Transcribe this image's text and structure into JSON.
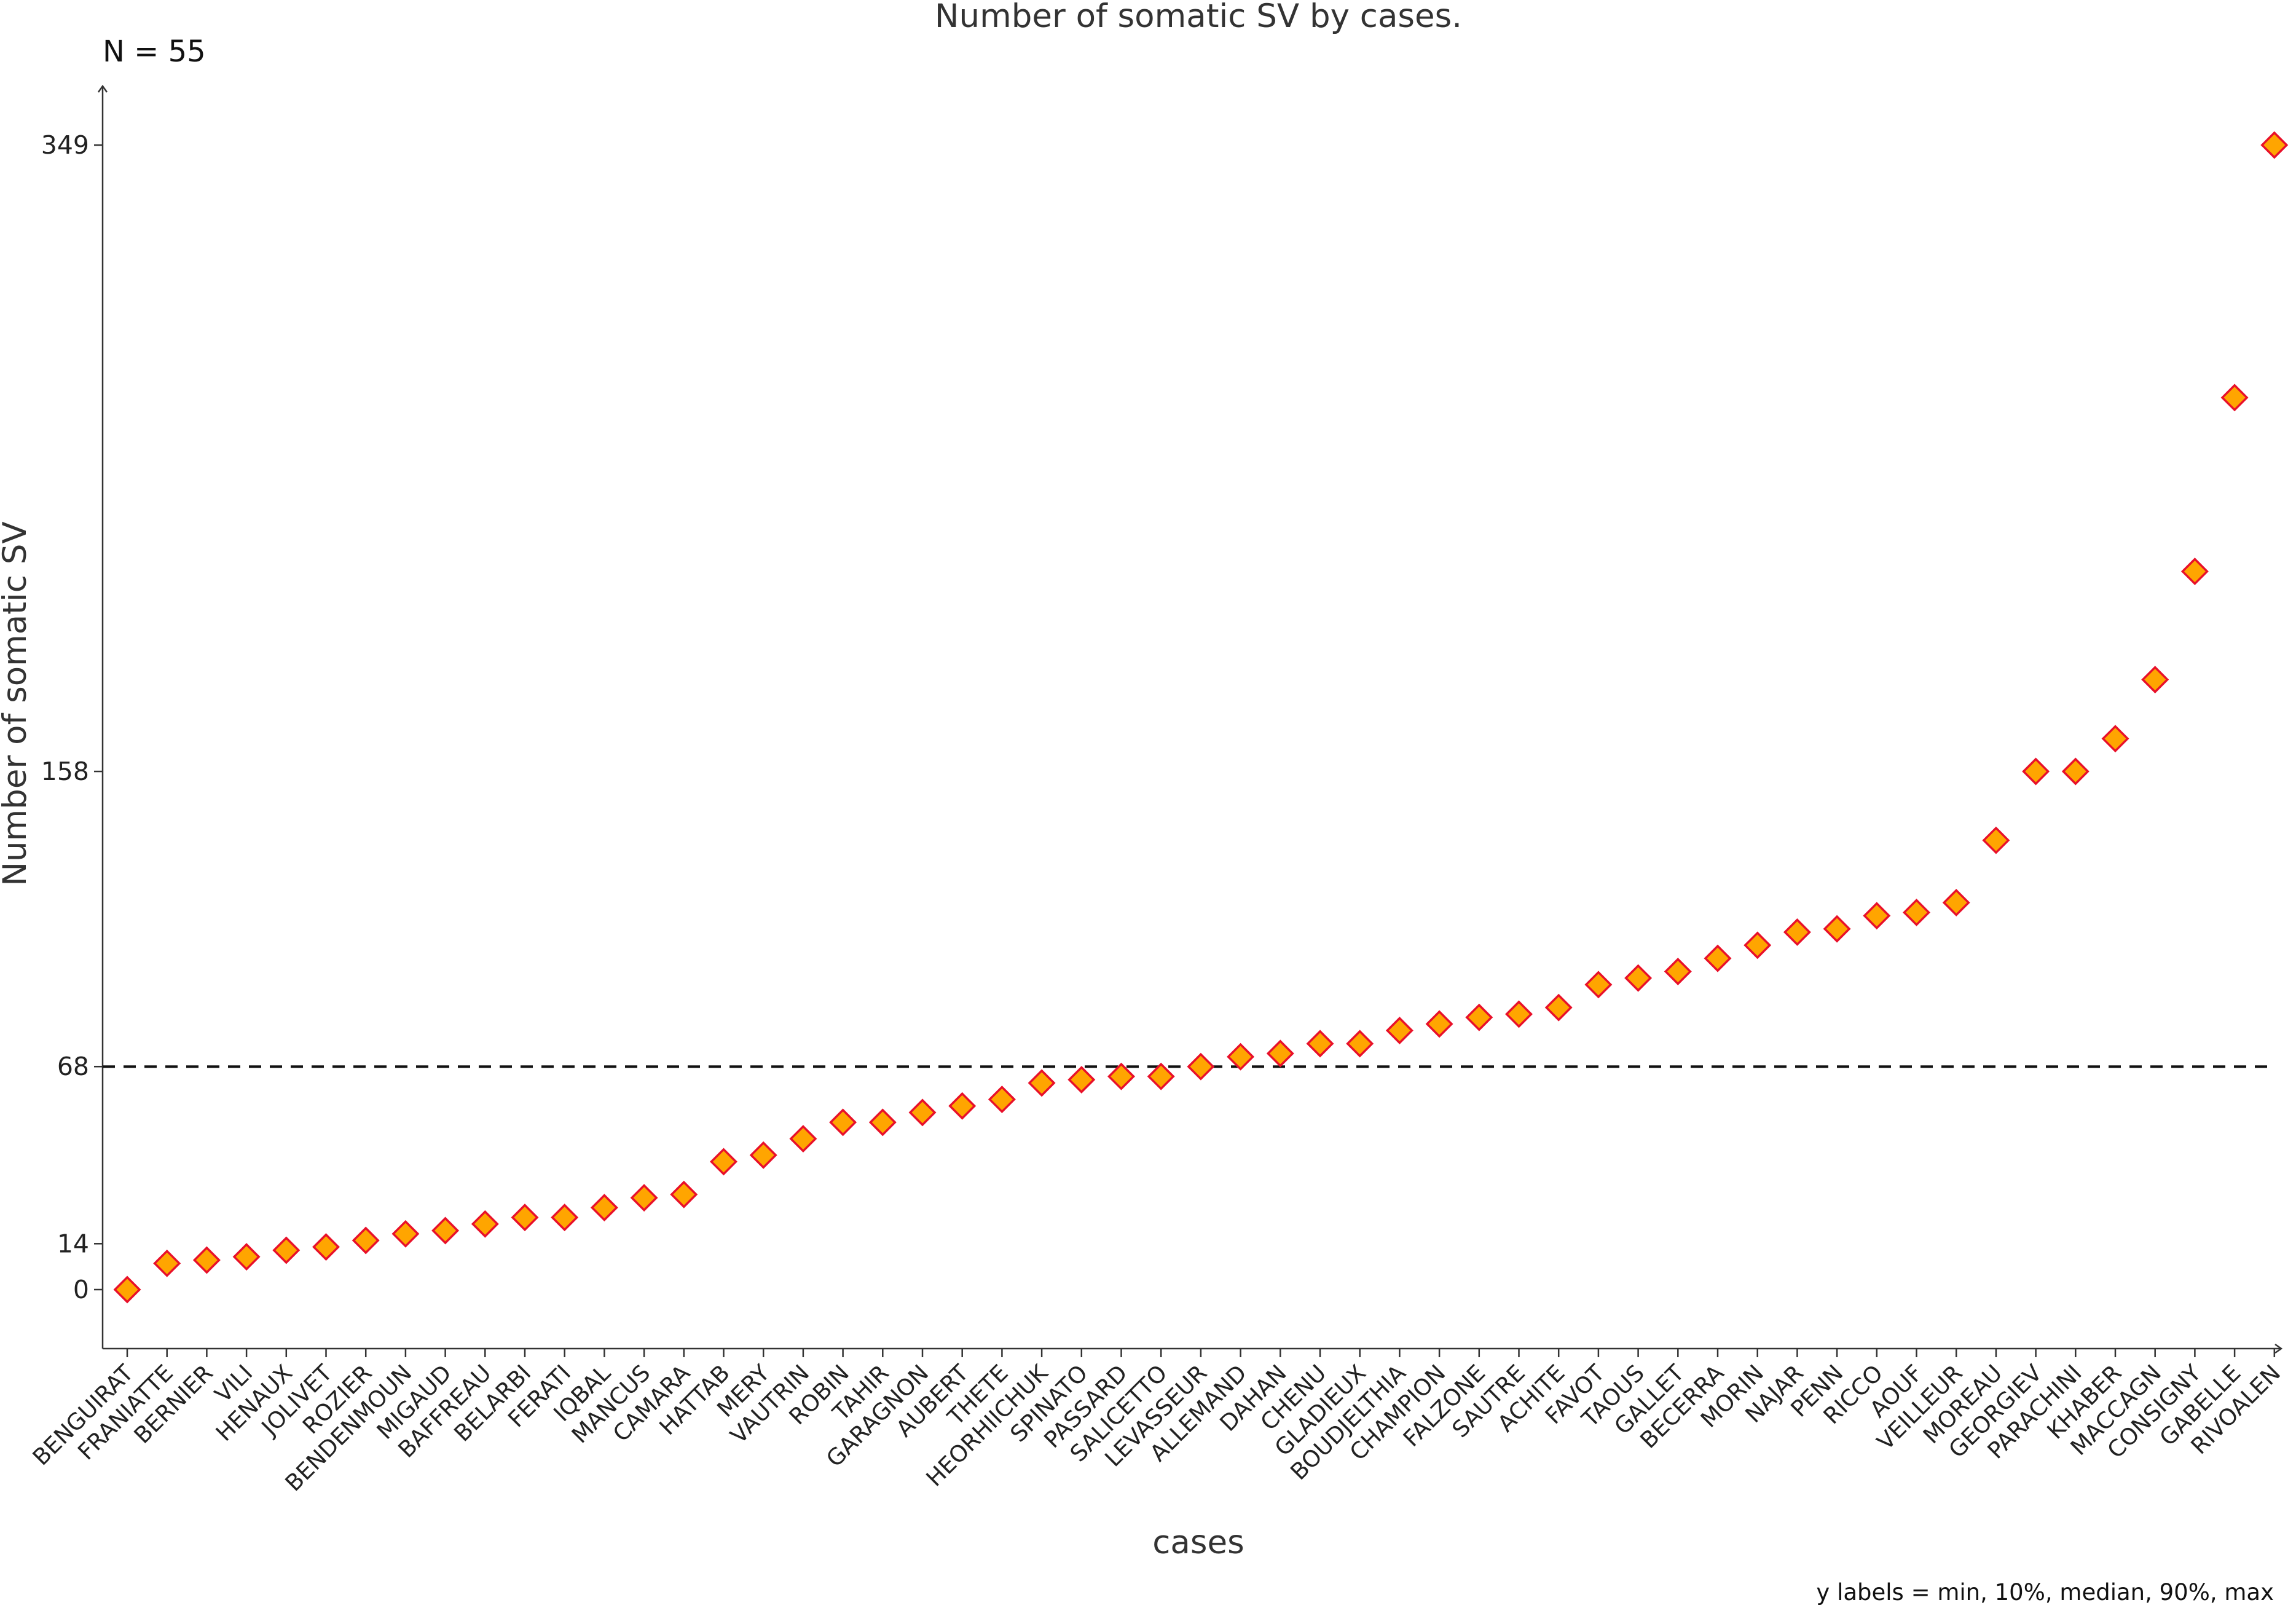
{
  "chart_data": {
    "type": "scatter",
    "title": "Number of somatic SV by cases.",
    "count_label": "N =  55",
    "xlabel": "cases",
    "ylabel": "Number of somatic SV",
    "footnote": "y labels = min, 10%, median, 90%, max",
    "ylim": [
      -18,
      365
    ],
    "y_ticks": [
      0,
      14,
      68,
      158,
      349
    ],
    "median": 68,
    "grid": false,
    "legend": "none",
    "marker": "diamond",
    "marker_fill": "#ffa500",
    "marker_stroke": "#e8102a",
    "categories": [
      "BENGUIRAT",
      "FRANIATTE",
      "BERNIER",
      "VILI",
      "HENAUX",
      "JOLIVET",
      "ROZIER",
      "BENDENMOUN",
      "MIGAUD",
      "BAFFREAU",
      "BELARBI",
      "FERATI",
      "IQBAL",
      "MANCUS",
      "CAMARA",
      "HATTAB",
      "MERY",
      "VAUTRIN",
      "ROBIN",
      "TAHIR",
      "GARAGNON",
      "AUBERT",
      "THETE",
      "HEORHIICHUK",
      "SPINATO",
      "PASSARD",
      "SALICETTO",
      "LEVASSEUR",
      "ALLEMAND",
      "DAHAN",
      "CHENU",
      "GLADIEUX",
      "BOUDJELTHIA",
      "CHAMPION",
      "FALZONE",
      "SAUTRE",
      "ACHITE",
      "FAVOT",
      "TAOUS",
      "GALLET",
      "BECERRA",
      "MORIN",
      "NAJAR",
      "PENN",
      "RICCO",
      "AOUF",
      "VEILLEUR",
      "MOREAU",
      "GEORGIEV",
      "PARACHINI",
      "KHABER",
      "MACCAGN",
      "CONSIGNY",
      "GABELLE",
      "RIVOALEN"
    ],
    "values": [
      0,
      8,
      9,
      10,
      12,
      13,
      15,
      17,
      18,
      20,
      22,
      22,
      25,
      28,
      29,
      39,
      41,
      46,
      51,
      51,
      54,
      56,
      58,
      63,
      64,
      65,
      65,
      68,
      71,
      72,
      75,
      75,
      79,
      81,
      83,
      84,
      86,
      93,
      95,
      97,
      101,
      105,
      109,
      110,
      114,
      115,
      118,
      137,
      158,
      158,
      168,
      186,
      219,
      272,
      349
    ]
  }
}
